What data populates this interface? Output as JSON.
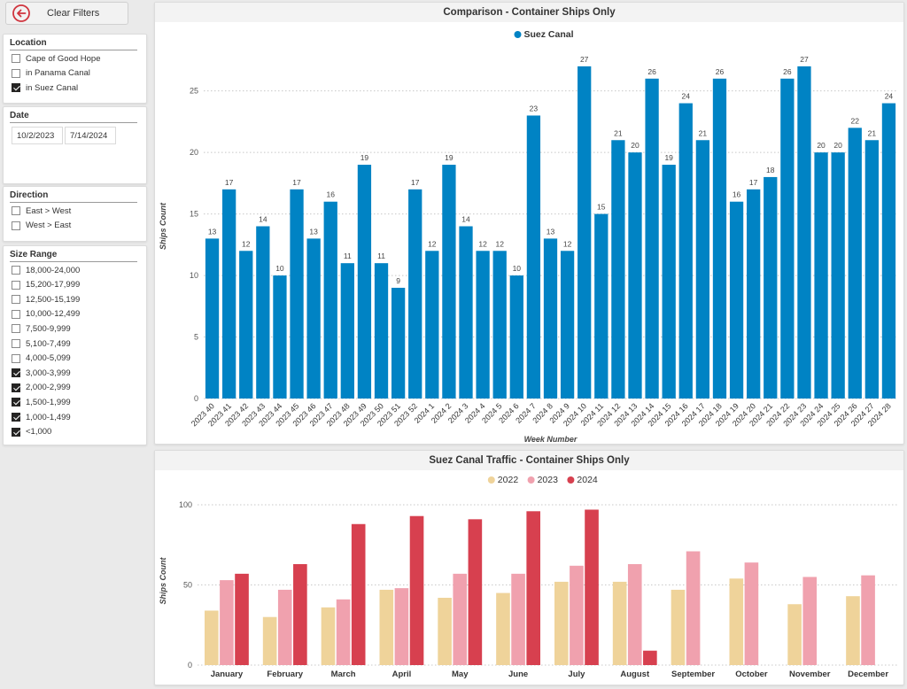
{
  "clear_filters": {
    "label": "Clear Filters"
  },
  "location": {
    "title": "Location",
    "items": [
      {
        "label": "Cape of Good Hope",
        "checked": false
      },
      {
        "label": "in Panama Canal",
        "checked": false
      },
      {
        "label": "in Suez Canal",
        "checked": true
      }
    ]
  },
  "date": {
    "title": "Date",
    "start": "10/2/2023",
    "end": "7/14/2024"
  },
  "direction": {
    "title": "Direction",
    "items": [
      {
        "label": "East > West",
        "checked": false
      },
      {
        "label": "West > East",
        "checked": false
      }
    ]
  },
  "size_range": {
    "title": "Size Range",
    "items": [
      {
        "label": "18,000-24,000",
        "checked": false
      },
      {
        "label": "15,200-17,999",
        "checked": false
      },
      {
        "label": "12,500-15,199",
        "checked": false
      },
      {
        "label": "10,000-12,499",
        "checked": false
      },
      {
        "label": "7,500-9,999",
        "checked": false
      },
      {
        "label": "5,100-7,499",
        "checked": false
      },
      {
        "label": "4,000-5,099",
        "checked": false
      },
      {
        "label": "3,000-3,999",
        "checked": true
      },
      {
        "label": "2,000-2,999",
        "checked": true
      },
      {
        "label": "1,500-1,999",
        "checked": true
      },
      {
        "label": "1,000-1,499",
        "checked": true
      },
      {
        "label": "<1,000",
        "checked": true
      }
    ]
  },
  "chart_data": [
    {
      "type": "bar",
      "title": "Comparison - Container Ships Only",
      "xlabel": "Week Number",
      "ylabel": "Ships Count",
      "ylim": [
        0,
        28
      ],
      "yticks": [
        0,
        5,
        10,
        15,
        20,
        25
      ],
      "grid": true,
      "legend": "top-center",
      "categories": [
        "2023 40",
        "2023 41",
        "2023 42",
        "2023 43",
        "2023 44",
        "2023 45",
        "2023 46",
        "2023 47",
        "2023 48",
        "2023 49",
        "2023 50",
        "2023 51",
        "2023 52",
        "2024 1",
        "2024 2",
        "2024 3",
        "2024 4",
        "2024 5",
        "2024 6",
        "2024 7",
        "2024 8",
        "2024 9",
        "2024 10",
        "2024 11",
        "2024 12",
        "2024 13",
        "2024 14",
        "2024 15",
        "2024 16",
        "2024 17",
        "2024 18",
        "2024 19",
        "2024 20",
        "2024 21",
        "2024 22",
        "2024 23",
        "2024 24",
        "2024 25",
        "2024 26",
        "2024 27",
        "2024 28"
      ],
      "series": [
        {
          "name": "Suez Canal",
          "color": "#0083c4",
          "values": [
            13,
            17,
            12,
            14,
            10,
            17,
            13,
            16,
            11,
            19,
            11,
            9,
            17,
            12,
            19,
            14,
            12,
            12,
            10,
            23,
            13,
            12,
            27,
            15,
            21,
            20,
            26,
            19,
            24,
            21,
            26,
            16,
            17,
            18,
            26,
            27,
            20,
            20,
            22,
            21,
            24
          ]
        }
      ]
    },
    {
      "type": "bar",
      "title": "Suez Canal Traffic - Container Ships Only",
      "xlabel": "",
      "ylabel": "Ships Count",
      "ylim": [
        0,
        105
      ],
      "yticks": [
        0,
        50,
        100
      ],
      "grid": true,
      "legend": "top-center",
      "categories": [
        "January",
        "February",
        "March",
        "April",
        "May",
        "June",
        "July",
        "August",
        "September",
        "October",
        "November",
        "December"
      ],
      "series": [
        {
          "name": "2022",
          "color": "#efd39a",
          "values": [
            34,
            30,
            36,
            47,
            42,
            45,
            52,
            52,
            47,
            54,
            38,
            43
          ]
        },
        {
          "name": "2023",
          "color": "#f0a1ae",
          "values": [
            53,
            47,
            41,
            48,
            57,
            57,
            62,
            63,
            71,
            64,
            55,
            56
          ]
        },
        {
          "name": "2024",
          "color": "#d7404f",
          "values": [
            57,
            63,
            88,
            93,
            91,
            96,
            97,
            9,
            null,
            null,
            null,
            null
          ]
        }
      ]
    }
  ]
}
